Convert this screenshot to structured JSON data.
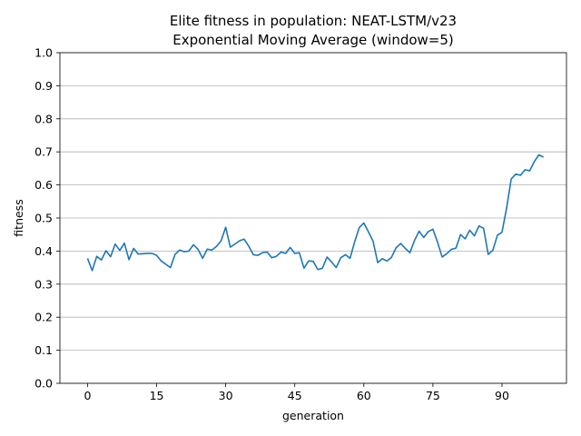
{
  "chart_data": {
    "type": "line",
    "title": "Elite fitness in population: NEAT-LSTM/v23",
    "subtitle": "Exponential Moving Average (window=5)",
    "xlabel": "generation",
    "ylabel": "fitness",
    "xlim": [
      -6,
      104
    ],
    "ylim": [
      0,
      1
    ],
    "xticks": [
      0,
      15,
      30,
      45,
      60,
      75,
      90
    ],
    "yticks": [
      0.0,
      0.1,
      0.2,
      0.3,
      0.4,
      0.5,
      0.6,
      0.7,
      0.8,
      0.9,
      1.0
    ],
    "ytick_labels": [
      "0.0",
      "0.1",
      "0.2",
      "0.3",
      "0.4",
      "0.5",
      "0.6",
      "0.7",
      "0.8",
      "0.9",
      "1.0"
    ],
    "grid": "horizontal",
    "color": "#1f77b4",
    "series": [
      {
        "x": [
          0,
          1,
          2,
          3,
          4,
          5,
          6,
          7,
          8,
          9,
          10,
          11,
          12,
          13,
          14,
          15,
          16,
          17,
          18,
          19,
          20,
          21,
          22,
          23,
          24,
          25,
          26,
          27,
          28,
          29,
          30,
          31,
          32,
          33,
          34,
          35,
          36,
          37,
          38,
          39,
          40,
          41,
          42,
          43,
          44,
          45,
          46,
          47,
          48,
          49,
          50,
          51,
          52,
          53,
          54,
          55,
          56,
          57,
          58,
          59,
          60,
          61,
          62,
          63,
          64,
          65,
          66,
          67,
          68,
          69,
          70,
          71,
          72,
          73,
          74,
          75,
          76,
          77,
          78,
          79,
          80,
          81,
          82,
          83,
          84,
          85,
          86,
          87,
          88,
          89,
          90,
          91,
          92,
          93,
          94,
          95,
          96,
          97,
          98,
          99
        ],
        "values": [
          0.378,
          0.341,
          0.384,
          0.373,
          0.401,
          0.383,
          0.421,
          0.402,
          0.424,
          0.374,
          0.408,
          0.391,
          0.392,
          0.393,
          0.393,
          0.387,
          0.37,
          0.36,
          0.35,
          0.39,
          0.403,
          0.398,
          0.4,
          0.419,
          0.405,
          0.378,
          0.406,
          0.403,
          0.414,
          0.431,
          0.472,
          0.412,
          0.421,
          0.431,
          0.436,
          0.415,
          0.389,
          0.387,
          0.395,
          0.397,
          0.38,
          0.384,
          0.397,
          0.393,
          0.411,
          0.393,
          0.395,
          0.348,
          0.37,
          0.369,
          0.344,
          0.348,
          0.382,
          0.367,
          0.35,
          0.38,
          0.389,
          0.378,
          0.428,
          0.471,
          0.485,
          0.458,
          0.43,
          0.365,
          0.377,
          0.37,
          0.381,
          0.41,
          0.423,
          0.408,
          0.395,
          0.432,
          0.46,
          0.441,
          0.459,
          0.466,
          0.427,
          0.382,
          0.392,
          0.405,
          0.409,
          0.45,
          0.437,
          0.463,
          0.446,
          0.476,
          0.469,
          0.39,
          0.402,
          0.448,
          0.457,
          0.53,
          0.618,
          0.633,
          0.629,
          0.646,
          0.643,
          0.67,
          0.691,
          0.684
        ]
      }
    ]
  }
}
